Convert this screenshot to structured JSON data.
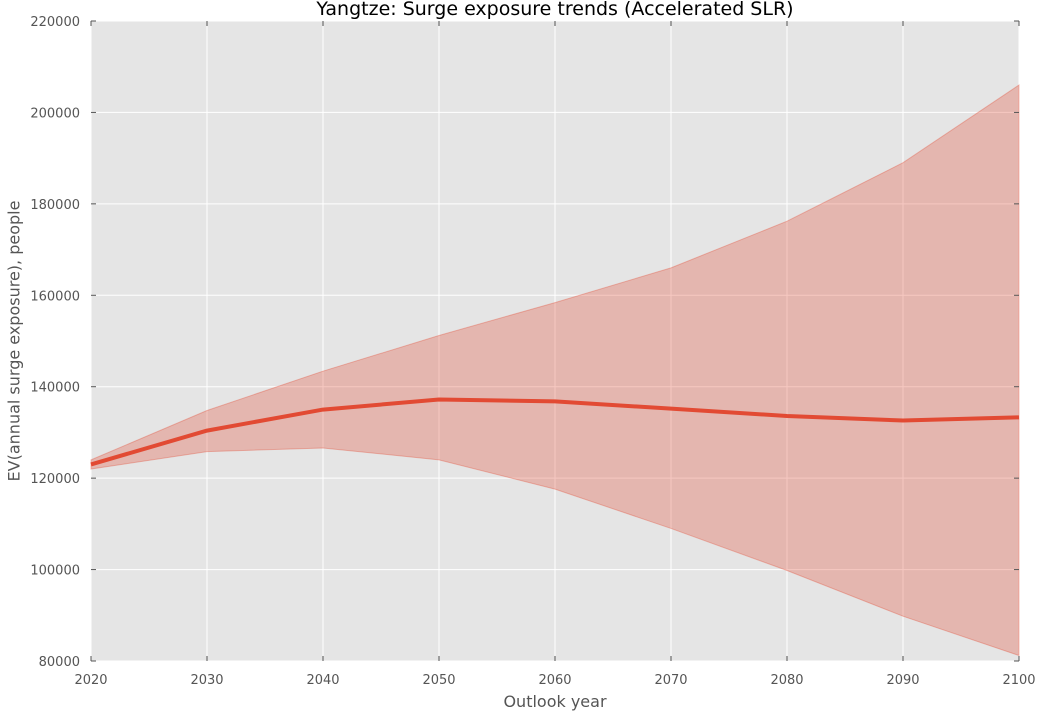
{
  "chart_data": {
    "type": "area",
    "title": "Yangtze: Surge exposure trends (Accelerated SLR)",
    "xlabel": "Outlook year",
    "ylabel": "EV(annual surge exposure), people",
    "xlim": [
      2020,
      2100
    ],
    "ylim": [
      80000,
      220000
    ],
    "x_ticks": [
      2020,
      2030,
      2040,
      2050,
      2060,
      2070,
      2080,
      2090,
      2100
    ],
    "y_ticks": [
      80000,
      100000,
      120000,
      140000,
      160000,
      180000,
      200000,
      220000
    ],
    "x_tick_labels": [
      "2020",
      "2030",
      "2040",
      "2050",
      "2060",
      "2070",
      "2080",
      "2090",
      "2100"
    ],
    "y_tick_labels": [
      "80000",
      "100000",
      "120000",
      "140000",
      "160000",
      "180000",
      "200000",
      "220000"
    ],
    "grid": true,
    "x": [
      2020,
      2030,
      2040,
      2050,
      2060,
      2070,
      2080,
      2090,
      2100
    ],
    "series": [
      {
        "type": "line",
        "values": [
          123000,
          130400,
          135000,
          137200,
          136800,
          135200,
          133600,
          132600,
          133300
        ],
        "color": "#e24a33"
      },
      {
        "type": "band",
        "lower": [
          122000,
          125800,
          126600,
          124000,
          117600,
          109000,
          99800,
          89800,
          81200
        ],
        "upper": [
          124000,
          134800,
          143400,
          151200,
          158400,
          166000,
          176200,
          189000,
          206000
        ],
        "color": "#e24a33",
        "opacity": 0.3
      }
    ],
    "colors": {
      "plot_bg": "#e5e5e5",
      "grid": "#ffffff",
      "line": "#e24a33"
    }
  }
}
